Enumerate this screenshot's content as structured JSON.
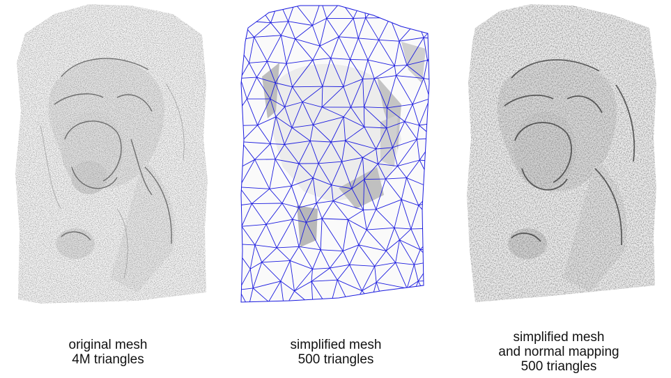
{
  "panels": [
    {
      "id": "original",
      "caption": [
        "original mesh",
        "4M triangles"
      ]
    },
    {
      "id": "simplified",
      "caption": [
        "simplified mesh",
        "500 triangles"
      ]
    },
    {
      "id": "normal",
      "caption": [
        "simplified mesh",
        "and normal mapping",
        "500 triangles"
      ]
    }
  ],
  "colors": {
    "wireframe": "#1a1adf",
    "mesh_fill": "#f2f2f2",
    "shade": "#c8c8c8",
    "dark_shade": "#8a8a8a",
    "text": "#111111"
  }
}
